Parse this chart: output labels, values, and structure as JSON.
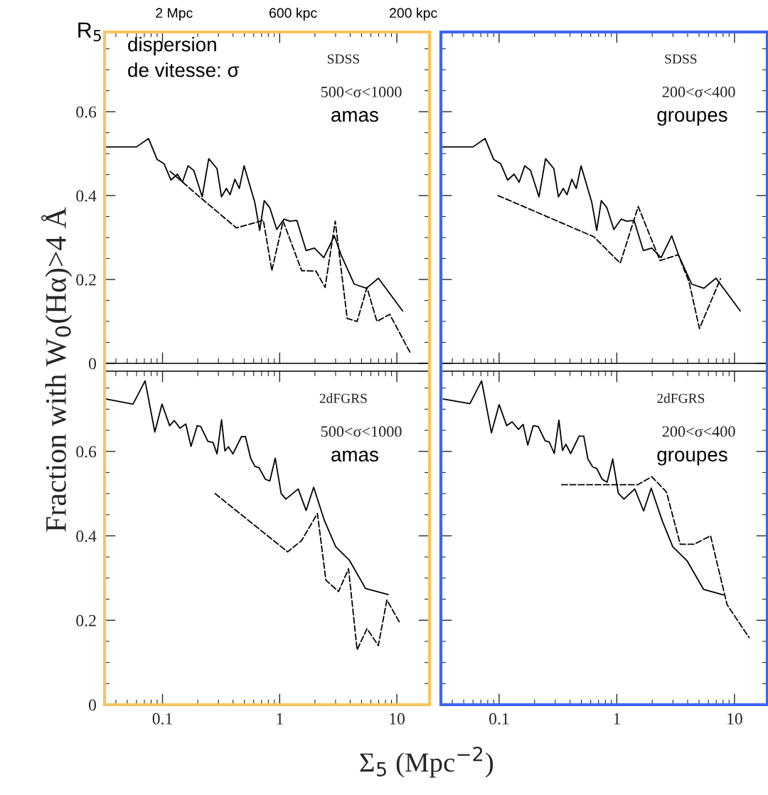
{
  "chart_data": [
    {
      "type": "line",
      "log": "x",
      "xlim": [
        0.032,
        19
      ],
      "ylim": [
        0,
        0.79
      ],
      "xticks": [
        0.1,
        1,
        10
      ],
      "yticks": [
        0,
        0.2,
        0.4,
        0.6
      ],
      "tick_labels": "y",
      "grid": false,
      "ylabel": "Fraction with W$_{0}$(Hα)>4 Å",
      "annotations": [
        "SDSS",
        "500<σ<1000",
        "amas",
        "dispersion\nde vitesse: σ",
        "R$_{5}$",
        "2 Mpc",
        "600 kpc",
        "200 kpc"
      ],
      "series": [
        {
          "color": "#000000",
          "line_style": "solid",
          "x": [
            0.032,
            0.06,
            0.076,
            0.09,
            0.103,
            0.118,
            0.134,
            0.148,
            0.165,
            0.185,
            0.218,
            0.248,
            0.292,
            0.319,
            0.351,
            0.377,
            0.415,
            0.452,
            0.497,
            0.614,
            0.675,
            0.738,
            0.824,
            0.944,
            1.09,
            1.22,
            1.4,
            1.68,
            1.98,
            2.38,
            2.93,
            3.37,
            4.33,
            5.5,
            6.96,
            11.2
          ],
          "values": [
            0.516,
            0.516,
            0.536,
            0.486,
            0.476,
            0.437,
            0.451,
            0.432,
            0.471,
            0.46,
            0.397,
            0.488,
            0.464,
            0.397,
            0.417,
            0.402,
            0.439,
            0.417,
            0.471,
            0.383,
            0.317,
            0.388,
            0.371,
            0.319,
            0.344,
            0.339,
            0.341,
            0.269,
            0.275,
            0.252,
            0.304,
            0.256,
            0.189,
            0.179,
            0.203,
            0.125
          ]
        },
        {
          "color": "#000000",
          "line_style": "dashed",
          "x": [
            0.116,
            0.207,
            0.427,
            0.726,
            0.857,
            1.07,
            1.54,
            2.04,
            2.44,
            2.98,
            3.77,
            4.58,
            5.56,
            6.76,
            8.69,
            13.2
          ],
          "values": [
            0.458,
            0.397,
            0.323,
            0.341,
            0.221,
            0.339,
            0.221,
            0.22,
            0.181,
            0.339,
            0.107,
            0.1,
            0.181,
            0.1,
            0.117,
            0.022
          ]
        }
      ]
    },
    {
      "type": "line",
      "log": "x",
      "xlim": [
        0.032,
        19
      ],
      "ylim": [
        0,
        0.79
      ],
      "xticks": [
        0.1,
        1,
        10
      ],
      "yticks": [
        0,
        0.2,
        0.4,
        0.6
      ],
      "tick_labels": false,
      "grid": false,
      "annotations": [
        "SDSS",
        "200<σ<400",
        "groupes"
      ],
      "series": [
        {
          "color": "#000000",
          "line_style": "solid",
          "x": [
            0.032,
            0.06,
            0.076,
            0.09,
            0.103,
            0.118,
            0.134,
            0.148,
            0.165,
            0.185,
            0.218,
            0.248,
            0.292,
            0.319,
            0.351,
            0.377,
            0.415,
            0.452,
            0.497,
            0.614,
            0.675,
            0.738,
            0.824,
            0.944,
            1.09,
            1.22,
            1.4,
            1.68,
            1.98,
            2.38,
            2.93,
            3.37,
            4.33,
            5.5,
            6.96,
            11.2
          ],
          "values": [
            0.516,
            0.516,
            0.536,
            0.486,
            0.476,
            0.437,
            0.451,
            0.432,
            0.471,
            0.46,
            0.397,
            0.488,
            0.464,
            0.397,
            0.417,
            0.402,
            0.439,
            0.417,
            0.471,
            0.383,
            0.317,
            0.388,
            0.371,
            0.319,
            0.344,
            0.339,
            0.341,
            0.269,
            0.275,
            0.252,
            0.304,
            0.256,
            0.189,
            0.179,
            0.203,
            0.125
          ]
        },
        {
          "color": "#000000",
          "line_style": "dashed",
          "x": [
            0.098,
            0.637,
            1.07,
            1.52,
            2.33,
            3.33,
            4.11,
            5.04,
            7.61
          ],
          "values": [
            0.4,
            0.302,
            0.239,
            0.374,
            0.245,
            0.259,
            0.194,
            0.083,
            0.202
          ]
        }
      ]
    },
    {
      "type": "line",
      "log": "x",
      "xlim": [
        0.032,
        19
      ],
      "ylim": [
        0,
        0.79
      ],
      "xticks": [
        0.1,
        1,
        10
      ],
      "yticks": [
        0,
        0.2,
        0.4,
        0.6
      ],
      "grid": false,
      "xlabel": "Σ$_{5}$ (Mpc$^{−2}$)",
      "annotations": [
        "2dFGRS",
        "500<σ<1000",
        "amas"
      ],
      "series": [
        {
          "color": "#000000",
          "line_style": "solid",
          "x": [
            0.033,
            0.056,
            0.071,
            0.086,
            0.099,
            0.115,
            0.126,
            0.141,
            0.158,
            0.175,
            0.198,
            0.212,
            0.244,
            0.27,
            0.292,
            0.319,
            0.341,
            0.365,
            0.399,
            0.472,
            0.51,
            0.565,
            0.614,
            0.668,
            0.755,
            0.824,
            0.916,
            1.03,
            1.13,
            1.44,
            1.68,
            1.95,
            2.41,
            3.01,
            3.94,
            5.41,
            8.45
          ],
          "values": [
            0.724,
            0.712,
            0.767,
            0.646,
            0.712,
            0.661,
            0.673,
            0.655,
            0.665,
            0.612,
            0.661,
            0.659,
            0.624,
            0.621,
            0.594,
            0.675,
            0.601,
            0.611,
            0.594,
            0.635,
            0.635,
            0.584,
            0.565,
            0.561,
            0.534,
            0.53,
            0.584,
            0.5,
            0.487,
            0.511,
            0.46,
            0.515,
            0.436,
            0.374,
            0.342,
            0.275,
            0.261
          ]
        },
        {
          "color": "#000000",
          "line_style": "dashed",
          "x": [
            0.281,
            1.17,
            1.54,
            2.1,
            2.48,
            3.18,
            3.87,
            4.58,
            5.56,
            6.95,
            8.22,
            10.6
          ],
          "values": [
            0.5,
            0.362,
            0.389,
            0.453,
            0.295,
            0.268,
            0.322,
            0.13,
            0.18,
            0.14,
            0.248,
            0.194
          ]
        }
      ]
    },
    {
      "type": "line",
      "log": "x",
      "xlim": [
        0.032,
        19
      ],
      "ylim": [
        0,
        0.79
      ],
      "xticks": [
        0.1,
        1,
        10
      ],
      "yticks": [
        0,
        0.2,
        0.4,
        0.6
      ],
      "tick_labels": "x",
      "grid": false,
      "annotations": [
        "2dFGRS",
        "200<σ<400",
        "groupes"
      ],
      "series": [
        {
          "color": "#000000",
          "line_style": "solid",
          "x": [
            0.0335,
            0.0565,
            0.071,
            0.086,
            0.1,
            0.116,
            0.129,
            0.146,
            0.16,
            0.175,
            0.195,
            0.215,
            0.246,
            0.267,
            0.294,
            0.322,
            0.346,
            0.369,
            0.406,
            0.478,
            0.524,
            0.568,
            0.625,
            0.674,
            0.751,
            0.828,
            0.923,
            1.03,
            1.15,
            1.42,
            1.69,
            1.96,
            2.43,
            2.99,
            3.95,
            5.47,
            8.06
          ],
          "values": [
            0.724,
            0.713,
            0.767,
            0.644,
            0.711,
            0.661,
            0.67,
            0.652,
            0.664,
            0.615,
            0.661,
            0.659,
            0.625,
            0.622,
            0.595,
            0.674,
            0.602,
            0.617,
            0.595,
            0.636,
            0.636,
            0.582,
            0.563,
            0.56,
            0.534,
            0.527,
            0.582,
            0.501,
            0.487,
            0.511,
            0.459,
            0.513,
            0.436,
            0.374,
            0.341,
            0.273,
            0.26
          ]
        },
        {
          "color": "#000000",
          "line_style": "dashed",
          "x": [
            0.34,
            1.5,
            1.98,
            2.64,
            3.46,
            4.53,
            6.26,
            8.65,
            13.3
          ],
          "values": [
            0.521,
            0.521,
            0.54,
            0.504,
            0.38,
            0.38,
            0.4,
            0.237,
            0.159
          ]
        }
      ]
    }
  ]
}
